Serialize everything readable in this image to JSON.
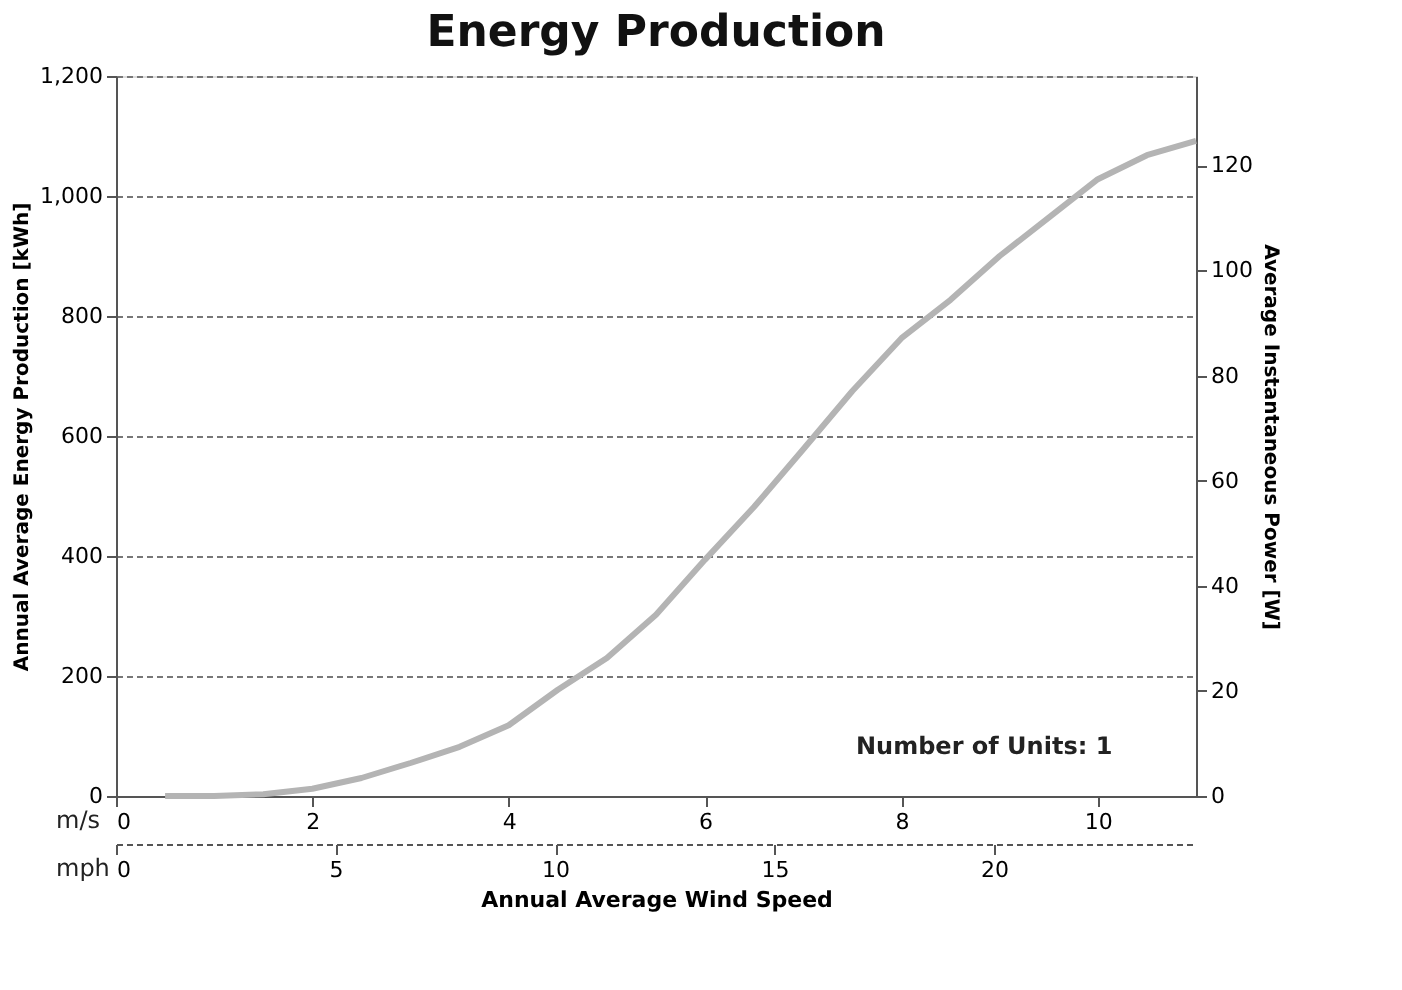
{
  "chart_data": {
    "type": "line",
    "title": "Energy Production",
    "xlabel": "Annual Average Wind Speed",
    "ylabel": "Annual Average Energy Production [kWh]",
    "y2label": "Average Instantaneous Power [W]",
    "x": [
      0.5,
      1,
      1.5,
      2,
      2.5,
      3,
      3.5,
      4,
      4.5,
      5,
      5.5,
      6,
      6.5,
      7,
      7.5,
      8,
      8.5,
      9,
      9.5,
      10,
      10.5,
      11
    ],
    "series": [
      {
        "color": "#b4b4b4",
        "values": [
          0,
          0,
          3,
          12,
          30,
          55,
          82,
          118,
          177,
          230,
          302,
          394,
          482,
          578,
          675,
          763,
          827,
          900,
          964,
          1028,
          1068,
          1092
        ]
      }
    ],
    "xlim": [
      0,
      11
    ],
    "xticks": [
      0,
      2,
      4,
      6,
      8,
      10
    ],
    "x2lim": [
      0,
      24.6
    ],
    "x2ticks": [
      0,
      5,
      10,
      15,
      20
    ],
    "ylim": [
      0,
      1200
    ],
    "yticks": [
      0,
      200,
      400,
      600,
      800,
      {
        "value": 1000,
        "label": "1,000"
      },
      {
        "value": 1200,
        "label": "1,200"
      }
    ],
    "y2lim": [
      0,
      137
    ],
    "y2ticks": [
      0,
      20,
      40,
      60,
      80,
      100,
      120
    ],
    "grid": "y",
    "marker": "none",
    "line_style": "solid",
    "annotations": [
      "m/s",
      "mph",
      "Number of Units: 1"
    ]
  }
}
